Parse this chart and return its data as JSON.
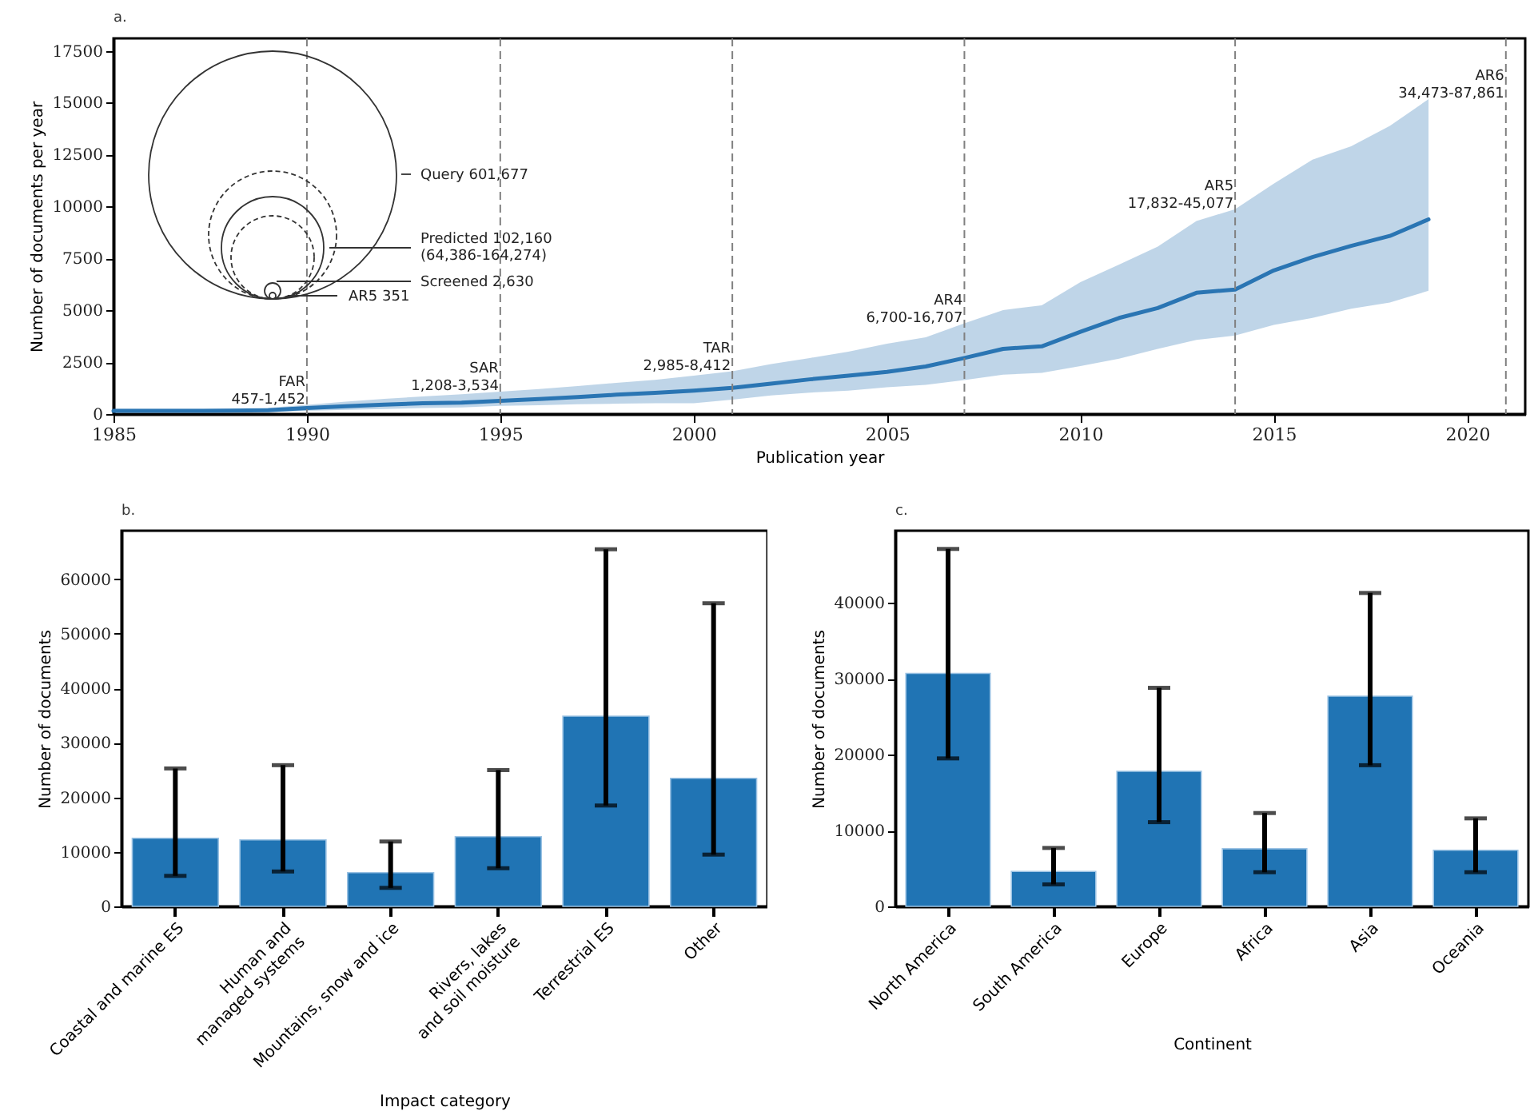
{
  "chart_data": [
    {
      "type": "line",
      "title": "a.",
      "xlabel": "Publication year",
      "ylabel": "Number of documents per year",
      "xlim": [
        1985,
        2021.5
      ],
      "xticks": [
        1985,
        1990,
        1995,
        2000,
        2005,
        2010,
        2015,
        2020
      ],
      "ylim": [
        0,
        18100
      ],
      "yticks": [
        0,
        2500,
        5000,
        7500,
        10000,
        12500,
        15000,
        17500
      ],
      "grid": false,
      "line_style": "solid",
      "series": [
        {
          "color": "#2a75b3",
          "x": [
            1985,
            1986,
            1987,
            1988,
            1989,
            1990,
            1991,
            1992,
            1993,
            1994,
            1995,
            1996,
            1997,
            1998,
            1999,
            2000,
            2001,
            2002,
            2003,
            2004,
            2005,
            2006,
            2007,
            2008,
            2009,
            2010,
            2011,
            2012,
            2013,
            2014,
            2015,
            2016,
            2017,
            2018,
            2019
          ],
          "values": [
            150,
            150,
            150,
            160,
            180,
            290,
            380,
            450,
            520,
            550,
            640,
            720,
            820,
            930,
            1020,
            1130,
            1260,
            1460,
            1670,
            1850,
            2030,
            2290,
            2700,
            3140,
            3260,
            3960,
            4630,
            5110,
            5840,
            6000,
            6920,
            7560,
            8100,
            8580,
            9380
          ],
          "lower": [
            80,
            80,
            80,
            90,
            100,
            150,
            200,
            240,
            290,
            320,
            390,
            420,
            470,
            500,
            520,
            520,
            690,
            900,
            1030,
            1130,
            1290,
            1410,
            1640,
            1900,
            1980,
            2310,
            2670,
            3140,
            3570,
            3780,
            4290,
            4630,
            5070,
            5370,
            5940
          ],
          "upper": [
            250,
            250,
            250,
            260,
            300,
            440,
            600,
            730,
            850,
            950,
            1080,
            1200,
            1350,
            1500,
            1650,
            1850,
            2060,
            2410,
            2700,
            3000,
            3390,
            3700,
            4370,
            5010,
            5240,
            6350,
            7200,
            8070,
            9300,
            9870,
            11100,
            12260,
            12900,
            13880,
            15170
          ]
        }
      ],
      "ref_lines": [
        {
          "axis": "x",
          "value": 1990,
          "label": "FAR\n457-1,452",
          "color": "#808080",
          "line_style": "dashed"
        },
        {
          "axis": "x",
          "value": 1995,
          "label": "SAR\n1,208-3,534",
          "color": "#808080",
          "line_style": "dashed"
        },
        {
          "axis": "x",
          "value": 2001,
          "label": "TAR\n2,985-8,412",
          "color": "#808080",
          "line_style": "dashed"
        },
        {
          "axis": "x",
          "value": 2007,
          "label": "AR4\n6,700-16,707",
          "color": "#808080",
          "line_style": "dashed"
        },
        {
          "axis": "x",
          "value": 2014,
          "label": "AR5\n17,832-45,077",
          "color": "#808080",
          "line_style": "dashed"
        },
        {
          "axis": "x",
          "value": 2021,
          "label": "AR6\n34,473-87,861",
          "color": "#808080",
          "line_style": "dashed"
        }
      ],
      "annotations": [
        "Query 601,677",
        "Predicted 102,160\n(64,386-164,274)",
        "Screened 2,630",
        "AR5 351"
      ]
    },
    {
      "type": "bar",
      "title": "b.",
      "xlabel": "Impact category",
      "ylabel": "Number of documents",
      "categories": [
        "Coastal and marine ES",
        "Human and\nmanaged systems",
        "Mountains, snow and ice",
        "Rivers, lakes\nand soil moisture",
        "Terrestrial ES",
        "Other"
      ],
      "color": "#2074b4",
      "ylim": [
        0,
        68900
      ],
      "yticks": [
        0,
        10000,
        20000,
        30000,
        40000,
        50000,
        60000
      ],
      "grid": false,
      "values": [
        12500,
        12200,
        6200,
        12800,
        34900,
        23500
      ],
      "errors": [
        [
          5600,
          25300
        ],
        [
          6400,
          25900
        ],
        [
          3400,
          11900
        ],
        [
          7000,
          25000
        ],
        [
          18500,
          65500
        ],
        [
          9500,
          55600
        ]
      ]
    },
    {
      "type": "bar",
      "title": "c.",
      "xlabel": "Continent",
      "ylabel": "Number of documents",
      "categories": [
        "North America",
        "South America",
        "Europe",
        "Africa",
        "Asia",
        "Oceania"
      ],
      "color": "#2074b4",
      "ylim": [
        0,
        49500
      ],
      "yticks": [
        0,
        10000,
        20000,
        30000,
        40000
      ],
      "grid": false,
      "values": [
        30700,
        4600,
        17800,
        7600,
        27700,
        7400
      ],
      "errors": [
        [
          19500,
          47100
        ],
        [
          2900,
          7700
        ],
        [
          11100,
          28800
        ],
        [
          4500,
          12300
        ],
        [
          18600,
          41300
        ],
        [
          4500,
          11600
        ]
      ]
    }
  ]
}
